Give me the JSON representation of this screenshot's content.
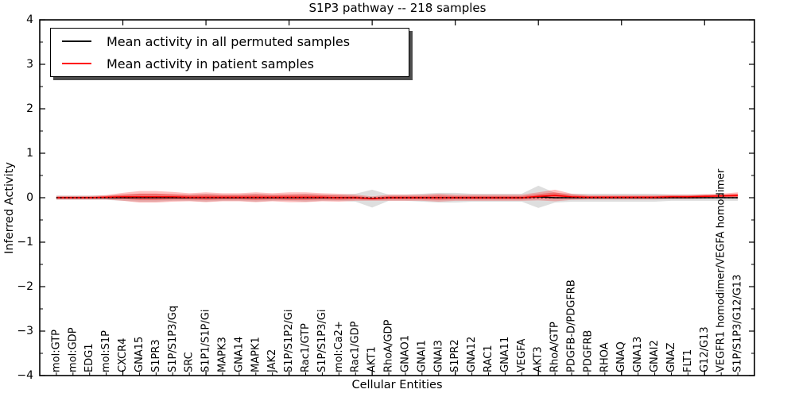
{
  "title": "S1P3 pathway -- 218 samples",
  "legend": {
    "items": [
      {
        "label": "Mean activity in all permuted samples",
        "color": "#000000"
      },
      {
        "label": "Mean activity in patient samples",
        "color": "#ff0000"
      }
    ]
  },
  "chart_data": {
    "type": "line",
    "title": "S1P3 pathway -- 218 samples",
    "xlabel": "Cellular Entities",
    "ylabel": "Inferred Activity",
    "ylim": [
      -4,
      4
    ],
    "yticks": [
      -4,
      -3,
      -2,
      -1,
      0,
      1,
      2,
      3,
      4
    ],
    "grid": false,
    "legend_position": "upper left",
    "categories": [
      "mol:GTP",
      "mol:GDP",
      "EDG1",
      "mol:S1P",
      "CXCR4",
      "GNA15",
      "S1PR3",
      "S1P/S1P3/Gq",
      "SRC",
      "S1P1/S1P/Gi",
      "MAPK3",
      "GNA14",
      "MAPK1",
      "JAK2",
      "S1P/S1P2/Gi",
      "Rac1/GTP",
      "S1P/S1P3/Gi",
      "mol:Ca2+",
      "Rac1/GDP",
      "AKT1",
      "RhoA/GDP",
      "GNAO1",
      "GNAI1",
      "GNAI3",
      "S1PR2",
      "GNA12",
      "RAC1",
      "GNA11",
      "VEGFA",
      "AKT3",
      "RhoA/GTP",
      "PDGFB-D/PDGFRB",
      "PDGFRB",
      "RHOA",
      "GNAQ",
      "GNA13",
      "GNAI2",
      "GNAZ",
      "FLT1",
      "G12/G13",
      "VEGFR1 homodimer/VEGFA homodimer",
      "S1P/S1P3/G12/G13"
    ],
    "series": [
      {
        "name": "Mean activity in all permuted samples",
        "color": "#000000",
        "band_color": "#bdbdbd",
        "values": [
          0,
          0,
          0,
          0,
          0,
          0,
          0,
          0,
          0,
          0,
          0,
          0,
          0,
          0,
          0,
          0,
          0,
          0,
          0,
          -0.02,
          0,
          0,
          0,
          0,
          0,
          0,
          0,
          0,
          0,
          0.02,
          0,
          0,
          0,
          0,
          0,
          0,
          0,
          0,
          0,
          0,
          0,
          0
        ],
        "std": [
          0.05,
          0.05,
          0.05,
          0.05,
          0.07,
          0.09,
          0.09,
          0.07,
          0.07,
          0.09,
          0.07,
          0.07,
          0.09,
          0.07,
          0.07,
          0.09,
          0.07,
          0.07,
          0.09,
          0.2,
          0.07,
          0.07,
          0.09,
          0.11,
          0.11,
          0.09,
          0.09,
          0.09,
          0.09,
          0.25,
          0.11,
          0.09,
          0.09,
          0.09,
          0.09,
          0.09,
          0.09,
          0.07,
          0.07,
          0.07,
          0.07,
          0.07
        ]
      },
      {
        "name": "Mean activity in patient samples",
        "color": "#ff0000",
        "band_color": "#ff0000",
        "values": [
          0,
          0,
          0,
          0.01,
          0.02,
          0.02,
          0.02,
          0.02,
          0.01,
          0.01,
          0.01,
          0.01,
          0.01,
          0.01,
          0.01,
          0.01,
          0.01,
          0,
          0,
          -0.02,
          0,
          0,
          0,
          0,
          0,
          0,
          0,
          0,
          0,
          0.03,
          0.05,
          0.02,
          0.01,
          0.01,
          0.01,
          0.01,
          0.01,
          0.02,
          0.02,
          0.03,
          0.04,
          0.05
        ],
        "std": [
          0.04,
          0.04,
          0.04,
          0.05,
          0.09,
          0.13,
          0.13,
          0.11,
          0.09,
          0.11,
          0.09,
          0.09,
          0.11,
          0.09,
          0.11,
          0.11,
          0.09,
          0.09,
          0.07,
          0.05,
          0.07,
          0.07,
          0.07,
          0.09,
          0.07,
          0.07,
          0.07,
          0.07,
          0.07,
          0.09,
          0.13,
          0.07,
          0.05,
          0.05,
          0.05,
          0.05,
          0.05,
          0.05,
          0.05,
          0.05,
          0.05,
          0.07
        ]
      }
    ],
    "zero_reference_line": {
      "y": 0,
      "style": "dotted",
      "color": "#000000"
    }
  }
}
